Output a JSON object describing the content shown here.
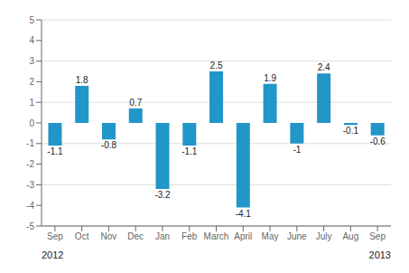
{
  "chart_data": {
    "type": "bar",
    "categories": [
      "Sep",
      "Oct",
      "Nov",
      "Dec",
      "Jan",
      "Feb",
      "March",
      "April",
      "May",
      "June",
      "July",
      "Aug",
      "Sep"
    ],
    "values": [
      -1.1,
      1.8,
      -0.8,
      0.7,
      -3.2,
      -1.1,
      2.5,
      -4.1,
      1.9,
      -1.0,
      2.4,
      -0.1,
      -0.6
    ],
    "color": "#2196C8",
    "ylim": [
      -5,
      5
    ],
    "yticks": [
      -5,
      -4,
      -3,
      -2,
      -1,
      0,
      1,
      2,
      3,
      4,
      5
    ],
    "grid": true,
    "data_labels": true,
    "annotations": [
      "2012",
      "2013"
    ]
  }
}
